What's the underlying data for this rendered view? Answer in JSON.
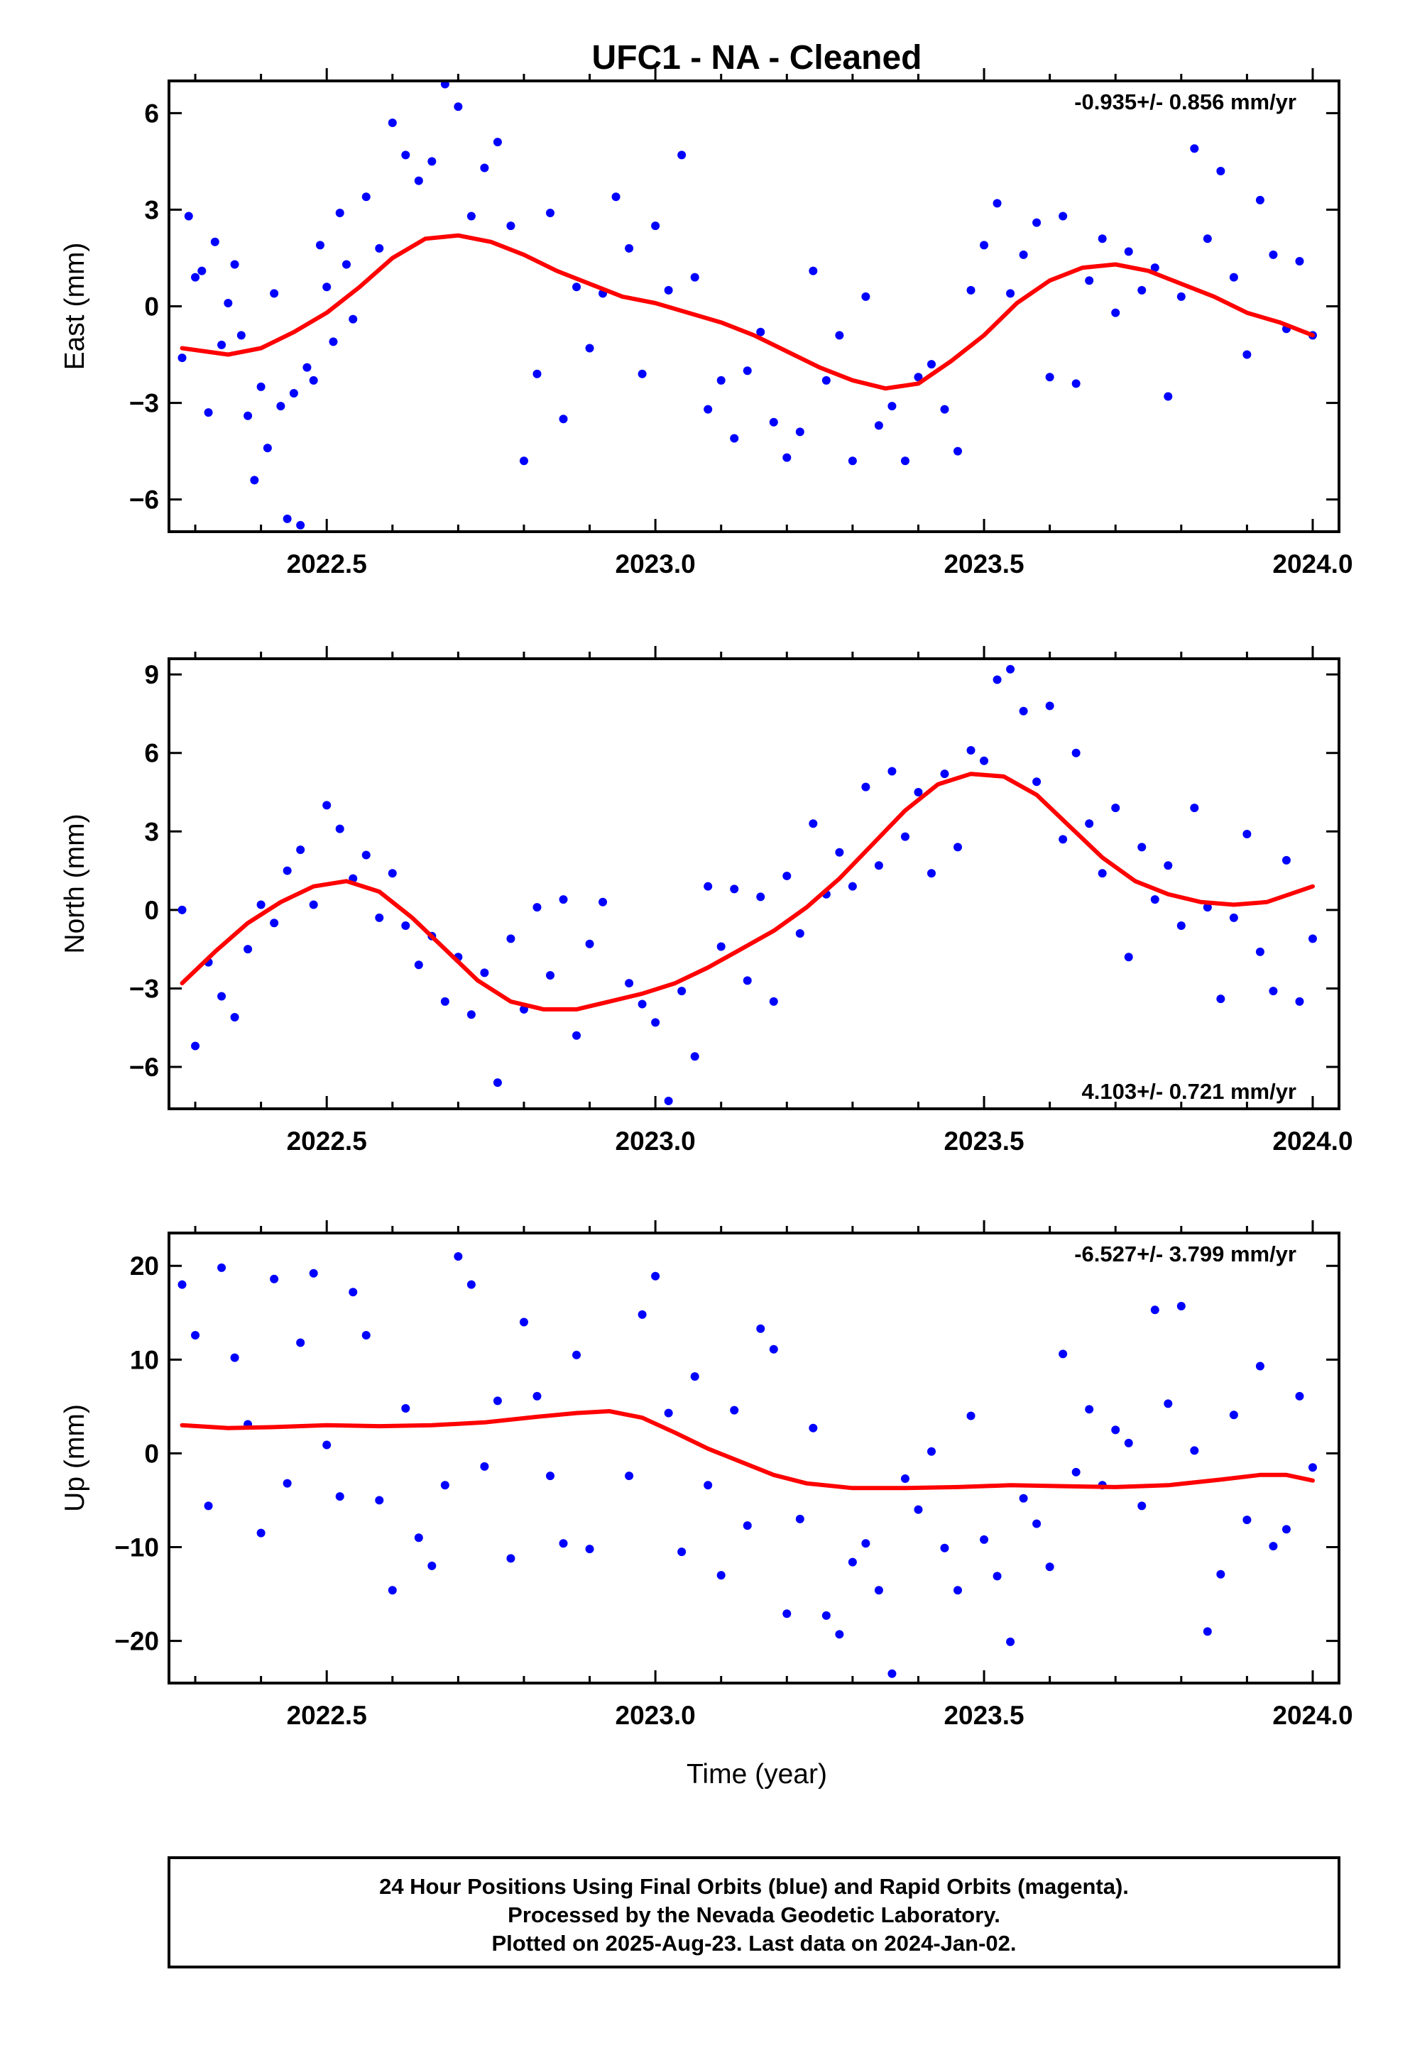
{
  "title": "UFC1  - NA - Cleaned",
  "colors": {
    "points": "#0000ff",
    "fit": "#ff0000",
    "axes": "#000000"
  },
  "xlabel": "Time (year)",
  "footer": {
    "line1": "24 Hour Positions Using Final Orbits (blue) and Rapid Orbits (magenta).",
    "line2": "Processed by the Nevada Geodetic Laboratory.",
    "line3": "Plotted on 2025-Aug-23. Last data on 2024-Jan-02."
  },
  "chart_data": [
    {
      "type": "scatter",
      "name": "east",
      "ylabel": "East (mm)",
      "rate": "-0.935+/- 0.856 mm/yr",
      "rate_position": "top-right",
      "xlim": [
        2022.26,
        2024.04
      ],
      "ylim": [
        -7.0,
        7.0
      ],
      "xticks": [
        2022.5,
        2023.0,
        2023.5,
        2024.0
      ],
      "xtick_labels": [
        "2022.5",
        "2023.0",
        "2023.5",
        "2024.0"
      ],
      "yticks": [
        -6,
        -3,
        0,
        3,
        6
      ],
      "ytick_labels": [
        "−6",
        "−3",
        "0",
        "3",
        "6"
      ],
      "fit_curve": {
        "x": [
          2022.28,
          2022.35,
          2022.4,
          2022.45,
          2022.5,
          2022.55,
          2022.6,
          2022.65,
          2022.7,
          2022.75,
          2022.8,
          2022.85,
          2022.9,
          2022.95,
          2023.0,
          2023.05,
          2023.1,
          2023.15,
          2023.2,
          2023.25,
          2023.3,
          2023.35,
          2023.4,
          2023.45,
          2023.5,
          2023.55,
          2023.6,
          2023.65,
          2023.7,
          2023.75,
          2023.8,
          2023.85,
          2023.9,
          2023.95,
          2024.0
        ],
        "y": [
          -1.3,
          -1.5,
          -1.3,
          -0.8,
          -0.2,
          0.6,
          1.5,
          2.1,
          2.2,
          2.0,
          1.6,
          1.1,
          0.7,
          0.3,
          0.1,
          -0.2,
          -0.5,
          -0.9,
          -1.4,
          -1.9,
          -2.3,
          -2.55,
          -2.4,
          -1.7,
          -0.9,
          0.1,
          0.8,
          1.2,
          1.3,
          1.1,
          0.7,
          0.3,
          -0.2,
          -0.5,
          -0.9
        ]
      },
      "points": {
        "x": [
          2022.28,
          2022.29,
          2022.3,
          2022.31,
          2022.32,
          2022.33,
          2022.34,
          2022.35,
          2022.36,
          2022.37,
          2022.38,
          2022.39,
          2022.4,
          2022.41,
          2022.42,
          2022.43,
          2022.44,
          2022.45,
          2022.46,
          2022.47,
          2022.48,
          2022.49,
          2022.5,
          2022.51,
          2022.52,
          2022.53,
          2022.54,
          2022.56,
          2022.58,
          2022.6,
          2022.62,
          2022.64,
          2022.66,
          2022.68,
          2022.7,
          2022.72,
          2022.74,
          2022.76,
          2022.78,
          2022.8,
          2022.82,
          2022.84,
          2022.86,
          2022.88,
          2022.9,
          2022.92,
          2022.94,
          2022.96,
          2022.98,
          2023.0,
          2023.02,
          2023.04,
          2023.06,
          2023.08,
          2023.1,
          2023.12,
          2023.14,
          2023.16,
          2023.18,
          2023.2,
          2023.22,
          2023.24,
          2023.26,
          2023.28,
          2023.3,
          2023.32,
          2023.34,
          2023.36,
          2023.38,
          2023.4,
          2023.42,
          2023.44,
          2023.46,
          2023.48,
          2023.5,
          2023.52,
          2023.54,
          2023.56,
          2023.58,
          2023.6,
          2023.62,
          2023.64,
          2023.66,
          2023.68,
          2023.7,
          2023.72,
          2023.74,
          2023.76,
          2023.78,
          2023.8,
          2023.82,
          2023.84,
          2023.86,
          2023.88,
          2023.9,
          2023.92,
          2023.94,
          2023.96,
          2023.98,
          2024.0
        ],
        "y": [
          -1.6,
          2.8,
          0.9,
          1.1,
          -3.3,
          2.0,
          -1.2,
          0.1,
          1.3,
          -0.9,
          -3.4,
          -5.4,
          -2.5,
          -4.4,
          0.4,
          -3.1,
          -6.6,
          -2.7,
          -6.8,
          -1.9,
          -2.3,
          1.9,
          0.6,
          -1.1,
          2.9,
          1.3,
          -0.4,
          3.4,
          1.8,
          5.7,
          4.7,
          3.9,
          4.5,
          6.9,
          6.2,
          2.8,
          4.3,
          5.1,
          2.5,
          -4.8,
          -2.1,
          2.9,
          -3.5,
          0.6,
          -1.3,
          0.4,
          3.4,
          1.8,
          -2.1,
          2.5,
          0.5,
          4.7,
          0.9,
          -3.2,
          -2.3,
          -4.1,
          -2.0,
          -0.8,
          -3.6,
          -4.7,
          -3.9,
          1.1,
          -2.3,
          -0.9,
          -4.8,
          0.3,
          -3.7,
          -3.1,
          -4.8,
          -2.2,
          -1.8,
          -3.2,
          -4.5,
          0.5,
          1.9,
          3.2,
          0.4,
          1.6,
          2.6,
          -2.2,
          2.8,
          -2.4,
          0.8,
          2.1,
          -0.2,
          1.7,
          0.5,
          1.2,
          -2.8,
          0.3,
          4.9,
          2.1,
          4.2,
          0.9,
          -1.5,
          3.3,
          1.6,
          -0.7,
          1.4,
          -0.9
        ]
      }
    },
    {
      "type": "scatter",
      "name": "north",
      "ylabel": "North (mm)",
      "rate": "4.103+/- 0.721 mm/yr",
      "rate_position": "bottom-right",
      "xlim": [
        2022.26,
        2024.04
      ],
      "ylim": [
        -7.6,
        9.6
      ],
      "xticks": [
        2022.5,
        2023.0,
        2023.5,
        2024.0
      ],
      "xtick_labels": [
        "2022.5",
        "2023.0",
        "2023.5",
        "2024.0"
      ],
      "yticks": [
        -6,
        -3,
        0,
        3,
        6,
        9
      ],
      "ytick_labels": [
        "−6",
        "−3",
        "0",
        "3",
        "6",
        "9"
      ],
      "fit_curve": {
        "x": [
          2022.28,
          2022.33,
          2022.38,
          2022.43,
          2022.48,
          2022.53,
          2022.58,
          2022.63,
          2022.68,
          2022.73,
          2022.78,
          2022.83,
          2022.88,
          2022.93,
          2022.98,
          2023.03,
          2023.08,
          2023.13,
          2023.18,
          2023.23,
          2023.28,
          2023.33,
          2023.38,
          2023.43,
          2023.48,
          2023.53,
          2023.58,
          2023.63,
          2023.68,
          2023.73,
          2023.78,
          2023.83,
          2023.88,
          2023.93,
          2024.0
        ],
        "y": [
          -2.8,
          -1.6,
          -0.5,
          0.3,
          0.9,
          1.1,
          0.7,
          -0.3,
          -1.5,
          -2.7,
          -3.5,
          -3.8,
          -3.8,
          -3.5,
          -3.2,
          -2.8,
          -2.2,
          -1.5,
          -0.8,
          0.1,
          1.2,
          2.5,
          3.8,
          4.8,
          5.2,
          5.1,
          4.4,
          3.2,
          2.0,
          1.1,
          0.6,
          0.3,
          0.2,
          0.3,
          0.9
        ]
      },
      "points": {
        "x": [
          2022.28,
          2022.3,
          2022.32,
          2022.34,
          2022.36,
          2022.38,
          2022.4,
          2022.42,
          2022.44,
          2022.46,
          2022.48,
          2022.5,
          2022.52,
          2022.54,
          2022.56,
          2022.58,
          2022.6,
          2022.62,
          2022.64,
          2022.66,
          2022.68,
          2022.7,
          2022.72,
          2022.74,
          2022.76,
          2022.78,
          2022.8,
          2022.82,
          2022.84,
          2022.86,
          2022.88,
          2022.9,
          2022.92,
          2022.96,
          2022.98,
          2023.0,
          2023.02,
          2023.04,
          2023.06,
          2023.08,
          2023.1,
          2023.12,
          2023.14,
          2023.16,
          2023.18,
          2023.2,
          2023.22,
          2023.24,
          2023.26,
          2023.28,
          2023.3,
          2023.32,
          2023.34,
          2023.36,
          2023.38,
          2023.4,
          2023.42,
          2023.44,
          2023.46,
          2023.48,
          2023.5,
          2023.52,
          2023.54,
          2023.56,
          2023.58,
          2023.6,
          2023.62,
          2023.64,
          2023.66,
          2023.68,
          2023.7,
          2023.72,
          2023.74,
          2023.76,
          2023.78,
          2023.8,
          2023.82,
          2023.84,
          2023.86,
          2023.88,
          2023.9,
          2023.92,
          2023.94,
          2023.96,
          2023.98,
          2024.0
        ],
        "y": [
          0.0,
          -5.2,
          -2.0,
          -3.3,
          -4.1,
          -1.5,
          0.2,
          -0.5,
          1.5,
          2.3,
          0.2,
          4.0,
          3.1,
          1.2,
          2.1,
          -0.3,
          1.4,
          -0.6,
          -2.1,
          -1.0,
          -3.5,
          -1.8,
          -4.0,
          -2.4,
          -6.6,
          -1.1,
          -3.8,
          0.1,
          -2.5,
          0.4,
          -4.8,
          -1.3,
          0.3,
          -2.8,
          -3.6,
          -4.3,
          -7.3,
          -3.1,
          -5.6,
          0.9,
          -1.4,
          0.8,
          -2.7,
          0.5,
          -3.5,
          1.3,
          -0.9,
          3.3,
          0.6,
          2.2,
          0.9,
          4.7,
          1.7,
          5.3,
          2.8,
          4.5,
          1.4,
          5.2,
          2.4,
          6.1,
          5.7,
          8.8,
          9.2,
          7.6,
          4.9,
          7.8,
          2.7,
          6.0,
          3.3,
          1.4,
          3.9,
          -1.8,
          2.4,
          0.4,
          1.7,
          -0.6,
          3.9,
          0.1,
          -3.4,
          -0.3,
          2.9,
          -1.6,
          -3.1,
          1.9,
          -3.5,
          -1.1
        ]
      }
    },
    {
      "type": "scatter",
      "name": "up",
      "ylabel": "Up (mm)",
      "rate": "-6.527+/- 3.799 mm/yr",
      "rate_position": "top-right",
      "xlim": [
        2022.26,
        2024.04
      ],
      "ylim": [
        -24.5,
        23.5
      ],
      "xticks": [
        2022.5,
        2023.0,
        2023.5,
        2024.0
      ],
      "xtick_labels": [
        "2022.5",
        "2023.0",
        "2023.5",
        "2024.0"
      ],
      "yticks": [
        -20,
        -10,
        0,
        10,
        20
      ],
      "ytick_labels": [
        "−20",
        "−10",
        "0",
        "10",
        "20"
      ],
      "fit_curve": {
        "x": [
          2022.28,
          2022.35,
          2022.42,
          2022.5,
          2022.58,
          2022.66,
          2022.74,
          2022.82,
          2022.88,
          2022.93,
          2022.98,
          2023.03,
          2023.08,
          2023.13,
          2023.18,
          2023.23,
          2023.3,
          2023.38,
          2023.46,
          2023.54,
          2023.62,
          2023.7,
          2023.78,
          2023.86,
          2023.92,
          2023.96,
          2024.0
        ],
        "y": [
          3.0,
          2.7,
          2.8,
          3.0,
          2.9,
          3.0,
          3.3,
          3.9,
          4.3,
          4.5,
          3.8,
          2.2,
          0.5,
          -0.9,
          -2.3,
          -3.2,
          -3.7,
          -3.7,
          -3.6,
          -3.4,
          -3.5,
          -3.6,
          -3.4,
          -2.8,
          -2.3,
          -2.3,
          -2.9
        ]
      },
      "points": {
        "x": [
          2022.28,
          2022.3,
          2022.32,
          2022.34,
          2022.36,
          2022.38,
          2022.4,
          2022.42,
          2022.44,
          2022.46,
          2022.48,
          2022.5,
          2022.52,
          2022.54,
          2022.56,
          2022.58,
          2022.6,
          2022.62,
          2022.64,
          2022.66,
          2022.68,
          2022.7,
          2022.72,
          2022.74,
          2022.76,
          2022.78,
          2022.8,
          2022.82,
          2022.84,
          2022.86,
          2022.88,
          2022.9,
          2022.96,
          2022.98,
          2023.0,
          2023.02,
          2023.04,
          2023.06,
          2023.08,
          2023.1,
          2023.12,
          2023.14,
          2023.16,
          2023.18,
          2023.2,
          2023.22,
          2023.24,
          2023.26,
          2023.28,
          2023.3,
          2023.32,
          2023.34,
          2023.36,
          2023.38,
          2023.4,
          2023.42,
          2023.44,
          2023.46,
          2023.48,
          2023.5,
          2023.52,
          2023.54,
          2023.56,
          2023.58,
          2023.6,
          2023.62,
          2023.64,
          2023.66,
          2023.68,
          2023.7,
          2023.72,
          2023.74,
          2023.76,
          2023.78,
          2023.8,
          2023.82,
          2023.84,
          2023.86,
          2023.88,
          2023.9,
          2023.92,
          2023.94,
          2023.96,
          2023.98,
          2024.0
        ],
        "y": [
          18.0,
          12.6,
          -5.6,
          19.8,
          10.2,
          3.1,
          -8.5,
          18.6,
          -3.2,
          11.8,
          19.2,
          0.9,
          -4.6,
          17.2,
          12.6,
          -5.0,
          -14.6,
          4.8,
          -9.0,
          -12.0,
          -3.4,
          21.0,
          18.0,
          -1.4,
          5.6,
          -11.2,
          14.0,
          6.1,
          -2.4,
          -9.6,
          10.5,
          -10.2,
          -2.4,
          14.8,
          18.9,
          4.3,
          -10.5,
          8.2,
          -3.4,
          -13.0,
          4.6,
          -7.7,
          13.3,
          11.1,
          -17.1,
          -7.0,
          2.7,
          -17.3,
          -19.3,
          -11.6,
          -9.6,
          -14.6,
          -23.5,
          -2.7,
          -6.0,
          0.2,
          -10.1,
          -14.6,
          4.0,
          -9.2,
          -13.1,
          -20.1,
          -4.8,
          -7.5,
          -12.1,
          10.6,
          -2.0,
          4.7,
          -3.4,
          2.5,
          1.1,
          -5.6,
          15.3,
          5.3,
          15.7,
          0.3,
          -19.0,
          -12.9,
          4.1,
          -7.1,
          9.3,
          -9.9,
          -8.1,
          6.1,
          -1.5
        ]
      }
    }
  ]
}
